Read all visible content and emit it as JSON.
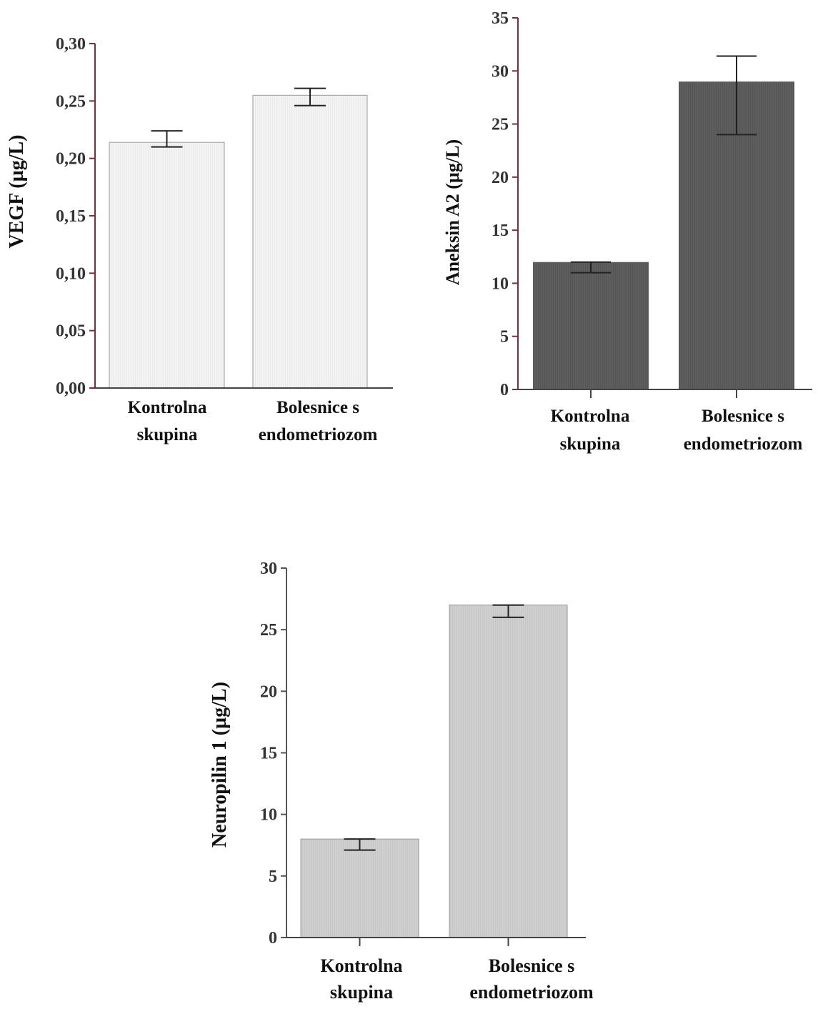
{
  "chart_data": [
    {
      "type": "bar",
      "ylabel": "VEGF  (µg/L)",
      "categories": [
        [
          "Kontrolna",
          "skupina"
        ],
        [
          "Bolesnice s",
          "endometriozom"
        ]
      ],
      "values": [
        0.214,
        0.255
      ],
      "error_low": [
        0.21,
        0.246
      ],
      "error_high": [
        0.224,
        0.261
      ],
      "ylim": [
        0,
        0.3
      ],
      "yticks": [
        0,
        0.05,
        0.1,
        0.15,
        0.2,
        0.25,
        0.3
      ],
      "ytick_labels": [
        "0,00",
        "0,05",
        "0,10",
        "0,15",
        "0,20",
        "0,25",
        "0,30"
      ],
      "bar_color": "#f3f3f3",
      "bar_stroke": "#9a9a9a",
      "axis_color": "#7a2e3a"
    },
    {
      "type": "bar",
      "ylabel": "Aneksin A2  (µg/L)",
      "categories": [
        [
          "Kontrolna",
          "skupina"
        ],
        [
          "Bolesnice s",
          "endometriozom"
        ]
      ],
      "values": [
        12,
        29
      ],
      "error_low": [
        11,
        24
      ],
      "error_high": [
        12,
        31.4
      ],
      "ylim": [
        0,
        35
      ],
      "yticks": [
        0,
        5,
        10,
        15,
        20,
        25,
        30,
        35
      ],
      "ytick_labels": [
        "0",
        "5",
        "10",
        "15",
        "20",
        "25",
        "30",
        "35"
      ],
      "bar_color": "#5e5e5e",
      "bar_stroke": "#444444",
      "axis_color": "#7a2e3a"
    },
    {
      "type": "bar",
      "ylabel": "Neuropilin 1  (µg/L)",
      "categories": [
        [
          "Kontrolna",
          "skupina"
        ],
        [
          "Bolesnice  s",
          "endometriozom"
        ]
      ],
      "values": [
        8,
        27
      ],
      "error_low": [
        7.1,
        26
      ],
      "error_high": [
        8,
        27
      ],
      "ylim": [
        0,
        30
      ],
      "yticks": [
        0,
        5,
        10,
        15,
        20,
        25,
        30
      ],
      "ytick_labels": [
        "0",
        "5",
        "10",
        "15",
        "20",
        "25",
        "30"
      ],
      "bar_color": "#cfcfcf",
      "bar_stroke": "#9a9a9a",
      "axis_color": "#555555"
    }
  ]
}
